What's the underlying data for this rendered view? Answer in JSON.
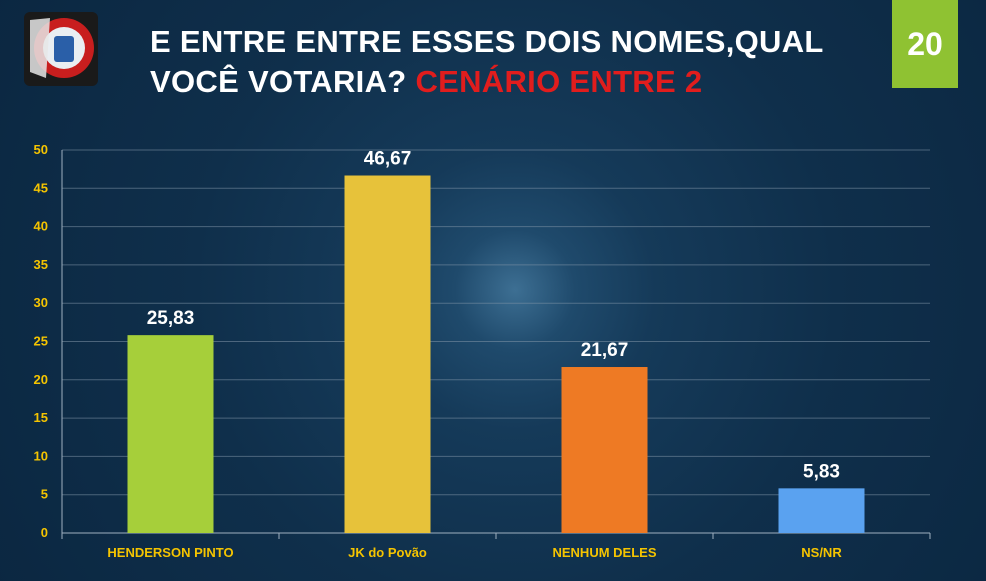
{
  "header": {
    "title_line1": "E ENTRE ENTRE ESSES DOIS NOMES,QUAL",
    "title_line2_prefix": "VOCÊ VOTARIA?",
    "title_line2_accent": "CENÁRIO ENTRE 2",
    "page_number": "20"
  },
  "colors": {
    "accent_red": "#e11d1d",
    "badge_green": "#8fc232",
    "tick_yellow": "#f5c400"
  },
  "chart_data": {
    "type": "bar",
    "categories": [
      "HENDERSON PINTO",
      "JK do Povão",
      "NENHUM DELES",
      "NS/NR"
    ],
    "values": [
      25.83,
      46.67,
      21.67,
      5.83
    ],
    "value_labels": [
      "25,83",
      "46,67",
      "21,67",
      "5,83"
    ],
    "bar_colors": [
      "#a6cf3a",
      "#e7c23a",
      "#ee7a24",
      "#5aa2f0"
    ],
    "ylim": [
      0,
      50
    ],
    "yticks": [
      0,
      5,
      10,
      15,
      20,
      25,
      30,
      35,
      40,
      45,
      50
    ],
    "grid": true,
    "legend": "none"
  }
}
